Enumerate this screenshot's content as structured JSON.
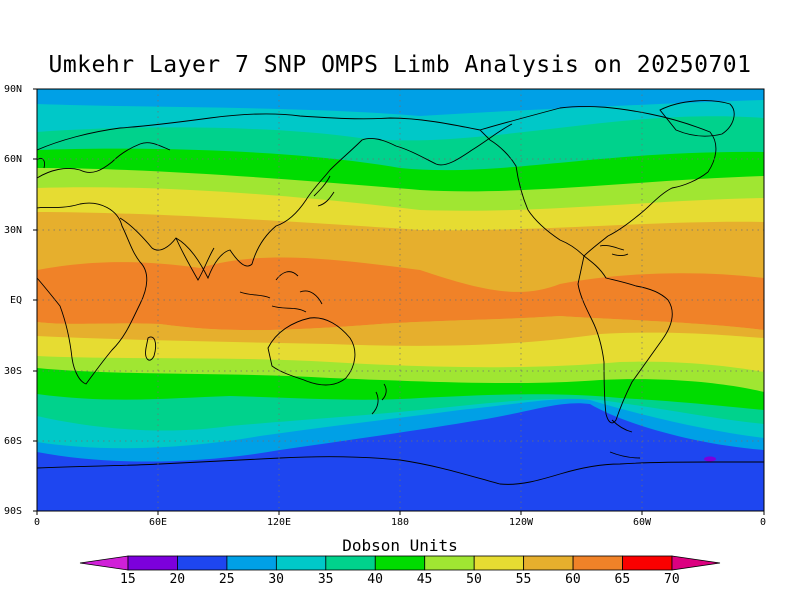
{
  "title": "Umkehr Layer 7 SNP OMPS Limb Analysis on 20250701",
  "colorbar": {
    "title": "Dobson Units",
    "labels": [
      "15",
      "20",
      "25",
      "30",
      "35",
      "40",
      "45",
      "50",
      "55",
      "60",
      "65",
      "70"
    ],
    "colors": [
      "#d020d8",
      "#7c00dc",
      "#1e46f0",
      "#00a0e6",
      "#00c8c8",
      "#00d28c",
      "#00dc00",
      "#a0e632",
      "#e6dc32",
      "#e6af2d",
      "#f08228",
      "#fa0000",
      "#dc0080"
    ]
  },
  "axes": {
    "lat_labels": [
      "90N",
      "60N",
      "30N",
      "EQ",
      "30S",
      "60S",
      "90S"
    ],
    "lon_labels": [
      "0",
      "60E",
      "120E",
      "180",
      "120W",
      "60W",
      "0"
    ]
  },
  "chart_data": {
    "type": "heatmap",
    "title": "Umkehr Layer 7 SNP OMPS Limb Analysis on 20250701",
    "units": "Dobson Units",
    "x_range": [
      0,
      360
    ],
    "y_range": [
      -90,
      90
    ],
    "lat_bands": [
      {
        "lat": 85,
        "value": 27
      },
      {
        "lat": 75,
        "value": 32
      },
      {
        "lat": 65,
        "value": 37
      },
      {
        "lat": 57,
        "value": 42
      },
      {
        "lat": 47,
        "value": 47
      },
      {
        "lat": 37,
        "value": 52
      },
      {
        "lat": 25,
        "value": 57
      },
      {
        "lat": 12,
        "value": 60
      },
      {
        "lat": 0,
        "value": 62
      },
      {
        "lat": -10,
        "value": 60
      },
      {
        "lat": -20,
        "value": 55
      },
      {
        "lat": -28,
        "value": 50
      },
      {
        "lat": -35,
        "value": 45
      },
      {
        "lat": -43,
        "value": 40
      },
      {
        "lat": -50,
        "value": 35
      },
      {
        "lat": -55,
        "value": 30
      },
      {
        "lat": -62,
        "value": 25
      },
      {
        "lat": -80,
        "value": 22
      }
    ],
    "grid": true
  }
}
